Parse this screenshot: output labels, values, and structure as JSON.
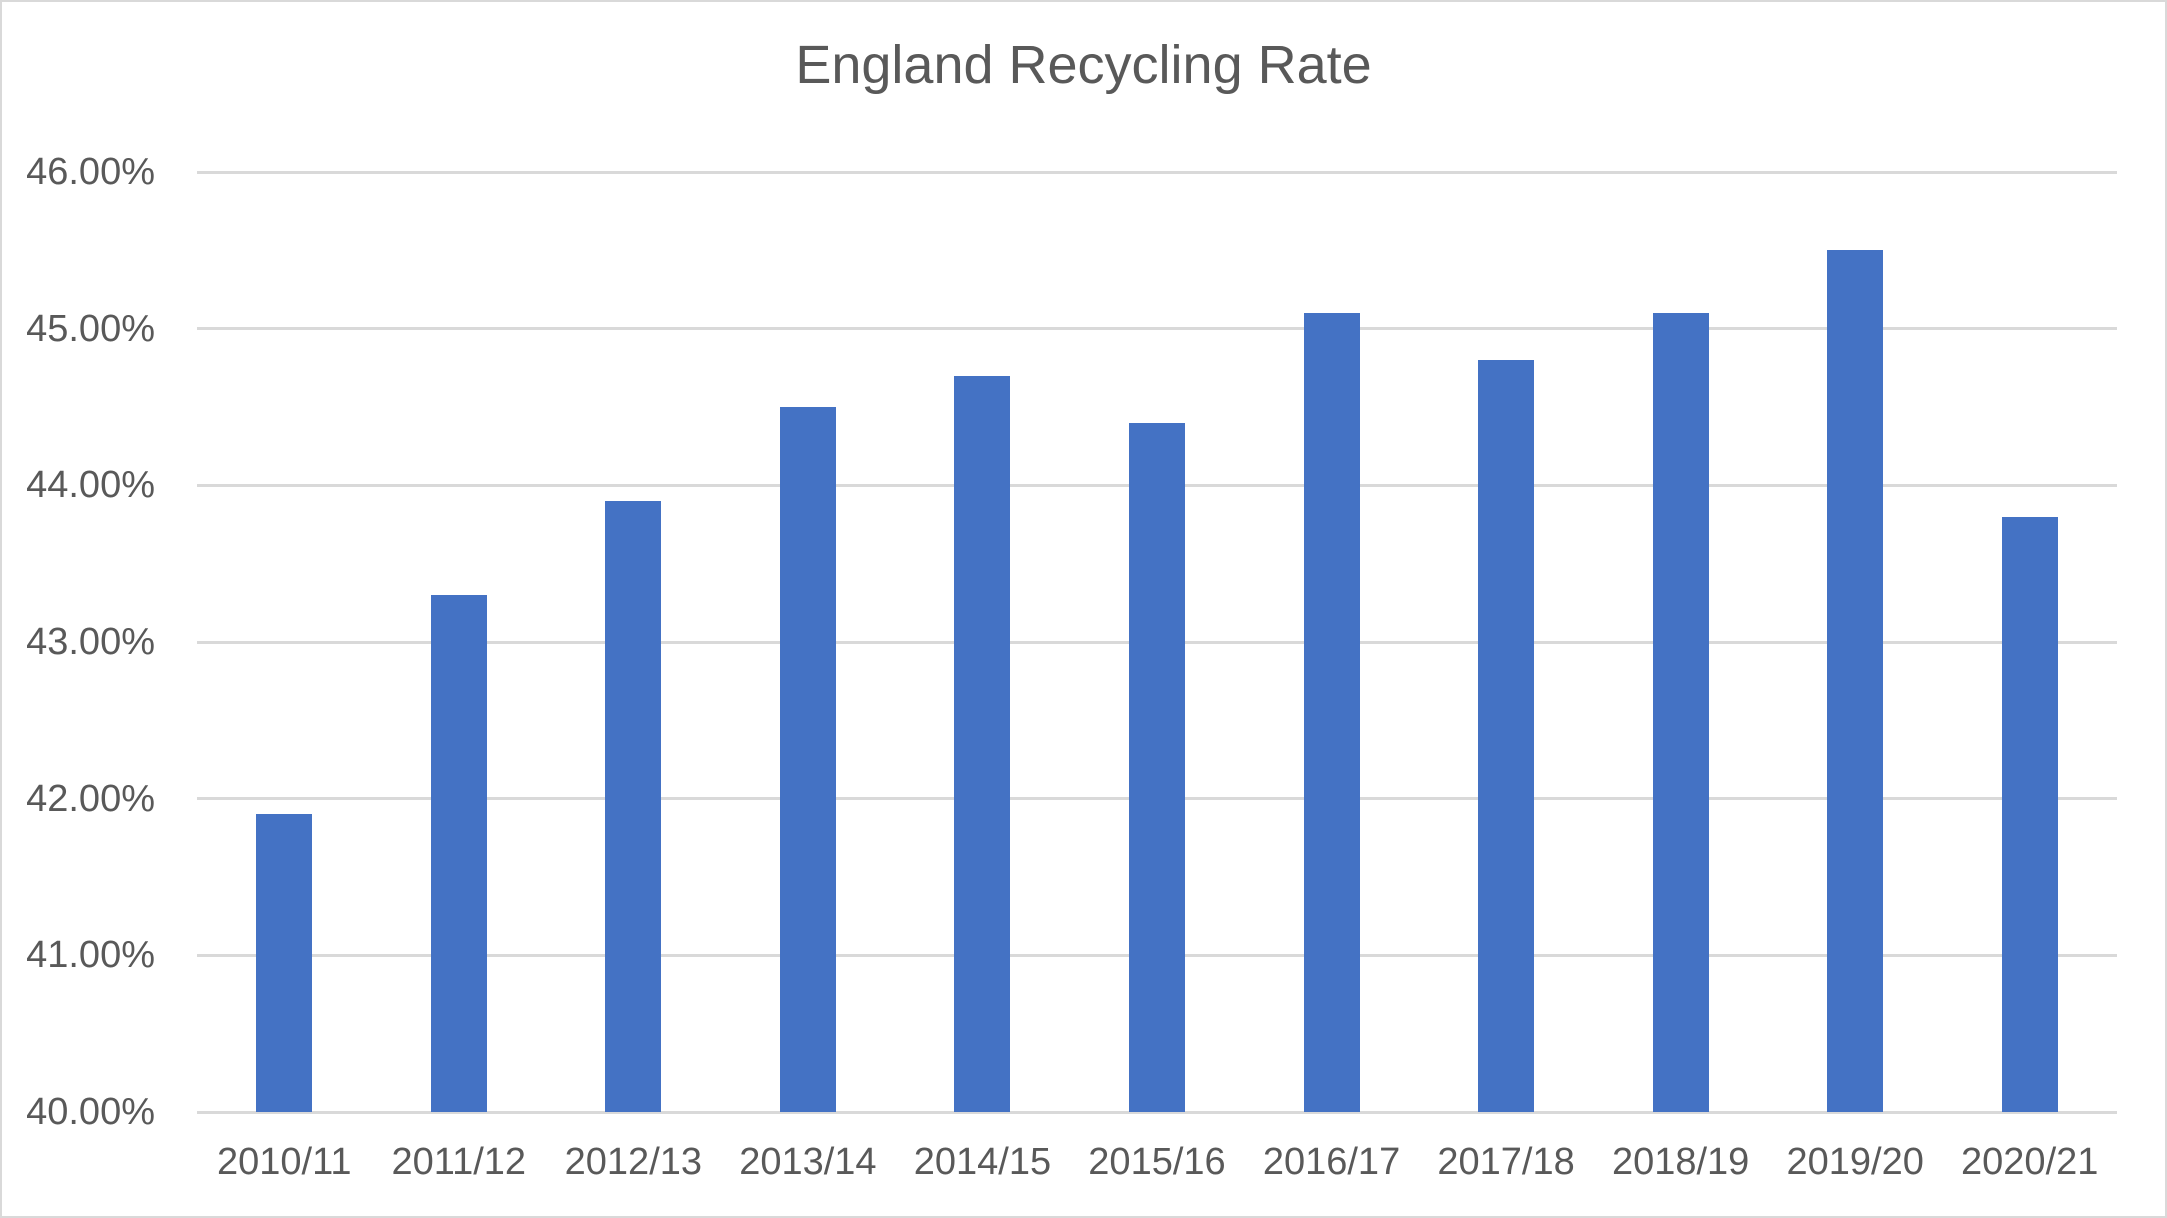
{
  "chart_data": {
    "type": "bar",
    "title": "England Recycling Rate",
    "categories": [
      "2010/11",
      "2011/12",
      "2012/13",
      "2013/14",
      "2014/15",
      "2015/16",
      "2016/17",
      "2017/18",
      "2018/19",
      "2019/20",
      "2020/21"
    ],
    "values": [
      41.9,
      43.3,
      43.9,
      44.5,
      44.7,
      44.4,
      45.1,
      44.8,
      45.1,
      45.5,
      43.8
    ],
    "unit": "percent",
    "xlabel": "",
    "ylabel": "",
    "ylim": [
      40,
      46
    ],
    "ytick_step": 1,
    "yticks": [
      40,
      41,
      42,
      43,
      44,
      45,
      46
    ],
    "ytick_labels": [
      "40.00%",
      "41.00%",
      "42.00%",
      "43.00%",
      "44.00%",
      "45.00%",
      "46.00%"
    ],
    "grid": "horizontal",
    "legend": "none",
    "colors": {
      "bar": "#4472C4",
      "gridline": "#d9d9d9",
      "axis_line": "#d9d9d9",
      "text": "#595959",
      "background": "#ffffff",
      "border": "#d9d9d9"
    }
  }
}
